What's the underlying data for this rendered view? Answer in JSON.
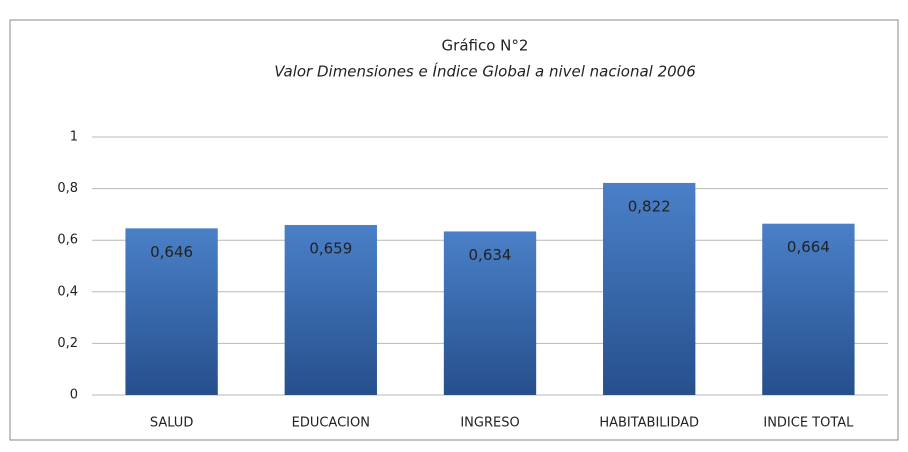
{
  "chart_data": {
    "type": "bar",
    "title": "Gráfico N°2",
    "subtitle": "Valor Dimensiones e Índice Global a nivel nacional 2006",
    "categories": [
      "SALUD",
      "EDUCACION",
      "INGRESO",
      "HABITABILIDAD",
      "INDICE TOTAL"
    ],
    "values": [
      0.646,
      0.659,
      0.634,
      0.822,
      0.664
    ],
    "value_labels": [
      "0,646",
      "0,659",
      "0,634",
      "0,822",
      "0,664"
    ],
    "color": "#4a80c8",
    "ylim": [
      0,
      1
    ],
    "yticks": [
      0,
      {
        "value": 0.2,
        "label": "0,2"
      },
      {
        "value": 0.4,
        "label": "0,4"
      },
      {
        "value": 0.6,
        "label": "0,6"
      },
      {
        "value": 0.8,
        "label": "0,8"
      },
      1
    ],
    "grid": true
  }
}
